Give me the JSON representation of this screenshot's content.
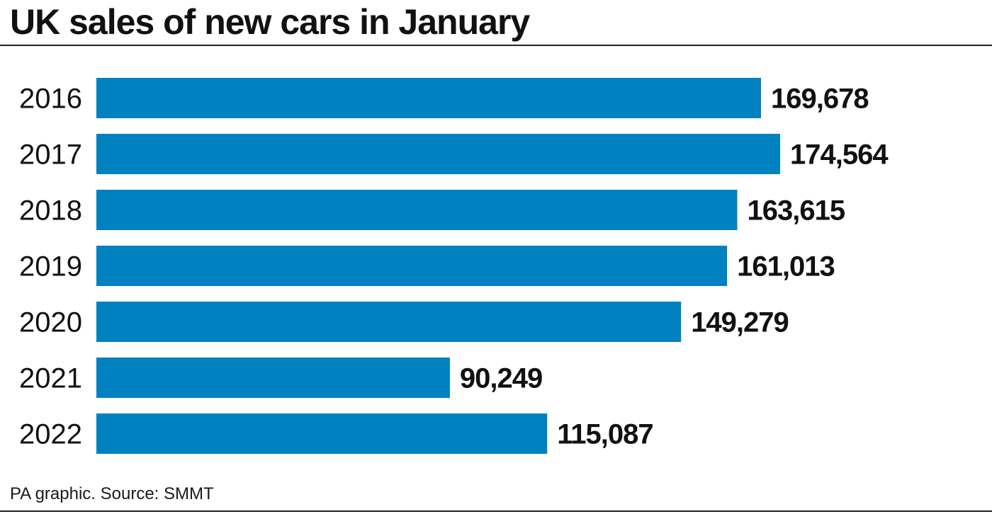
{
  "title": "UK sales of new cars in January",
  "source": "PA graphic. Source: SMMT",
  "colors": {
    "bar": "#0081c0",
    "text": "#111111"
  },
  "chart_data": {
    "type": "bar",
    "orientation": "horizontal",
    "title": "UK sales of new cars in January",
    "categories": [
      "2016",
      "2017",
      "2018",
      "2019",
      "2020",
      "2021",
      "2022"
    ],
    "values": [
      169678,
      174564,
      163615,
      161013,
      149279,
      90249,
      115087
    ],
    "value_labels": [
      "169,678",
      "174,564",
      "163,615",
      "161,013",
      "149,279",
      "90,249",
      "115,087"
    ],
    "xlim": [
      0,
      174564
    ],
    "grid": false,
    "legend": "none"
  }
}
